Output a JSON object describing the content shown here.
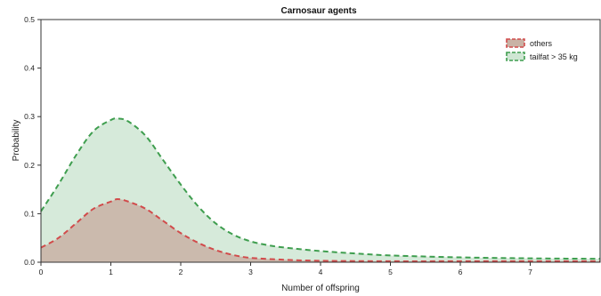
{
  "chart_data": {
    "type": "area",
    "title": "Carnosaur agents",
    "xlabel": "Number of offspring",
    "ylabel": "Probability",
    "xlim": [
      0,
      8
    ],
    "ylim": [
      0,
      0.5
    ],
    "x_ticks": [
      "0",
      "1",
      "2",
      "3",
      "4",
      "5",
      "6",
      "7"
    ],
    "y_ticks": [
      "0.0",
      "0.1",
      "0.2",
      "0.3",
      "0.4",
      "0.5"
    ],
    "grid": false,
    "legend_position": "top-right",
    "series": [
      {
        "name": "others",
        "color": "#d14b4b",
        "fill": "#c9b2a5",
        "x": [
          0,
          0.25,
          0.5,
          0.75,
          1.0,
          1.1,
          1.25,
          1.5,
          1.75,
          2.0,
          2.25,
          2.5,
          2.75,
          3.0,
          3.5,
          4.0,
          5.0,
          6.0,
          7.0,
          8.0
        ],
        "y": [
          0.03,
          0.05,
          0.08,
          0.11,
          0.125,
          0.13,
          0.125,
          0.11,
          0.085,
          0.06,
          0.04,
          0.025,
          0.015,
          0.009,
          0.005,
          0.003,
          0.002,
          0.002,
          0.002,
          0.002
        ]
      },
      {
        "name": "tailfat > 35 kg",
        "color": "#3f9e4f",
        "fill": "#cfe6d3",
        "x": [
          0,
          0.25,
          0.5,
          0.75,
          1.0,
          1.1,
          1.25,
          1.5,
          1.75,
          2.0,
          2.25,
          2.5,
          2.75,
          3.0,
          3.25,
          3.5,
          4.0,
          4.5,
          5.0,
          6.0,
          7.0,
          8.0
        ],
        "y": [
          0.105,
          0.16,
          0.22,
          0.27,
          0.293,
          0.296,
          0.29,
          0.26,
          0.21,
          0.16,
          0.115,
          0.08,
          0.057,
          0.043,
          0.035,
          0.03,
          0.023,
          0.018,
          0.014,
          0.01,
          0.008,
          0.007
        ]
      }
    ]
  }
}
